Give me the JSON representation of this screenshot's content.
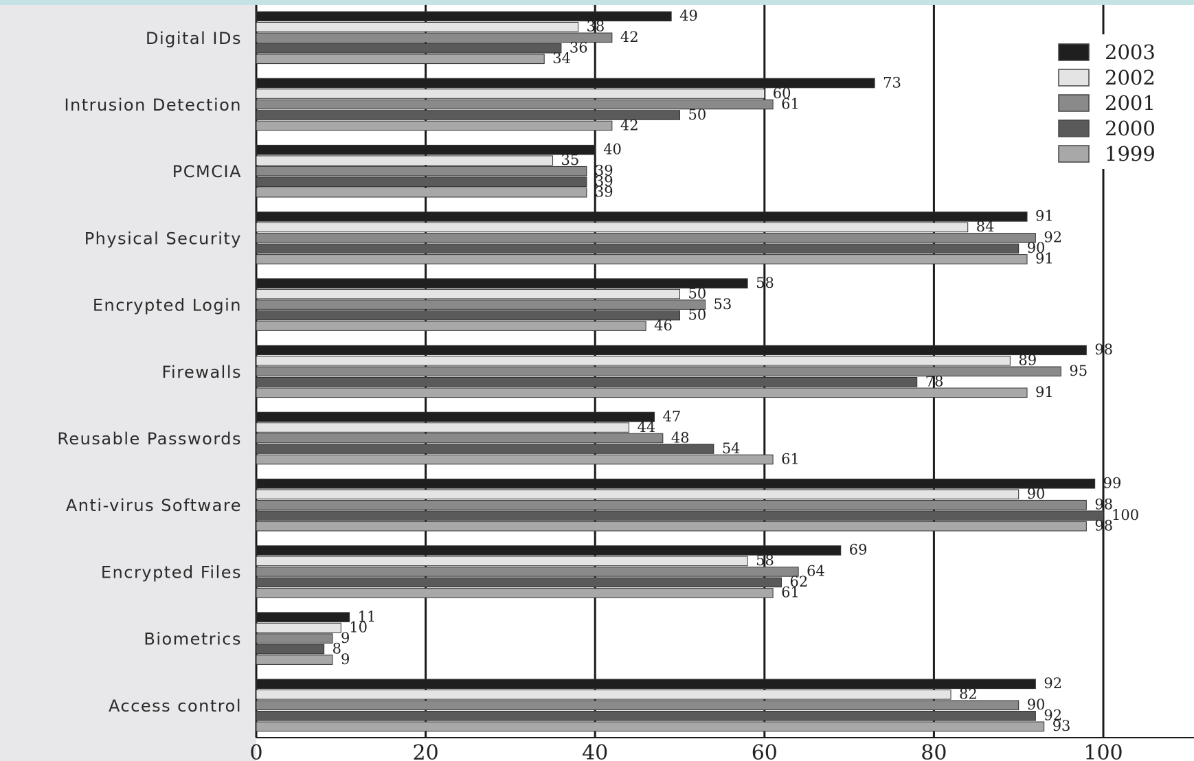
{
  "chart_data": {
    "type": "bar",
    "orientation": "horizontal",
    "title": "",
    "xlabel": "",
    "ylabel": "",
    "xlim": [
      0,
      100
    ],
    "x_ticks": [
      "0",
      "20",
      "40",
      "60",
      "80",
      "100"
    ],
    "grid": true,
    "legend_position": "top-right",
    "categories": [
      "Digital IDs",
      "Intrusion Detection",
      "PCMCIA",
      "Physical Security",
      "Encrypted Login",
      "Firewalls",
      "Reusable Passwords",
      "Anti-virus Software",
      "Encrypted Files",
      "Biometrics",
      "Access control"
    ],
    "series": [
      {
        "name": "2003",
        "color": "#1f1f1f",
        "values": [
          49,
          73,
          40,
          91,
          58,
          98,
          47,
          99,
          69,
          11,
          92
        ]
      },
      {
        "name": "2002",
        "color": "#e4e4e4",
        "values": [
          38,
          60,
          35,
          84,
          50,
          89,
          44,
          90,
          58,
          10,
          82
        ]
      },
      {
        "name": "2001",
        "color": "#8a8a8a",
        "values": [
          42,
          61,
          39,
          92,
          53,
          95,
          48,
          98,
          64,
          9,
          90
        ]
      },
      {
        "name": "2000",
        "color": "#5a5a5a",
        "values": [
          36,
          50,
          39,
          90,
          50,
          78,
          54,
          100,
          62,
          8,
          92
        ]
      },
      {
        "name": "1999",
        "color": "#a8a8a8",
        "values": [
          34,
          42,
          39,
          91,
          46,
          91,
          61,
          98,
          61,
          9,
          93
        ]
      }
    ]
  },
  "colors": {
    "panel_background": "#e8e8ea",
    "plot_background": "#ffffff",
    "top_band": "#c5e2e4",
    "gridline": "#1a1a1a"
  }
}
